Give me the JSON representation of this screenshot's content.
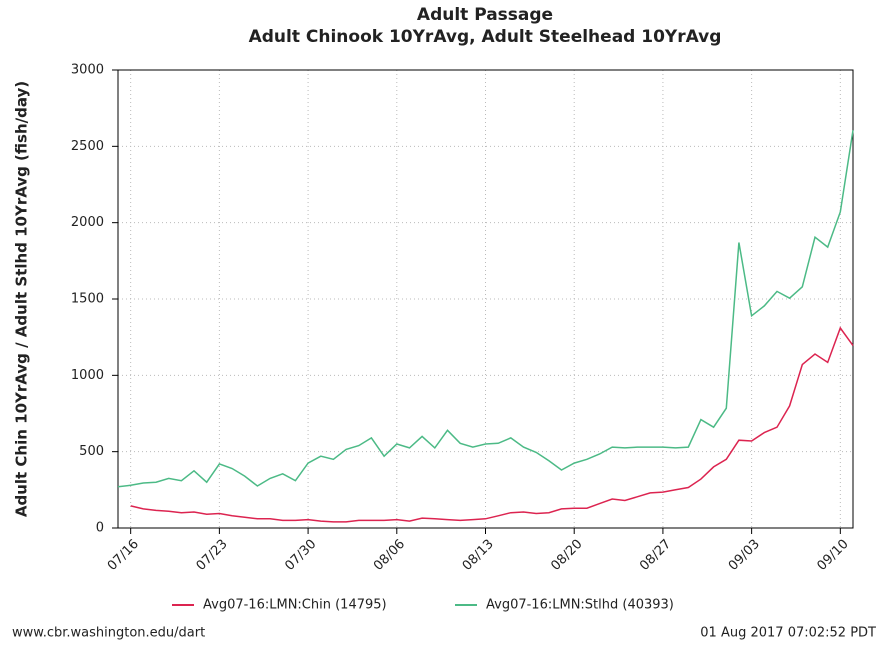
{
  "chart_data": {
    "type": "line",
    "title": "Adult Passage",
    "subtitle": "Adult Chinook 10YrAvg, Adult Steelhead 10YrAvg",
    "y_label": "Adult Chin 10YrAvg / Adult Stlhd 10YrAvg (fish/day)",
    "categories": [
      null,
      "07/16",
      null,
      null,
      null,
      null,
      null,
      null,
      "07/23",
      null,
      null,
      null,
      null,
      null,
      null,
      "07/30",
      null,
      null,
      null,
      null,
      null,
      null,
      "08/06",
      null,
      null,
      null,
      null,
      null,
      null,
      "08/13",
      null,
      null,
      null,
      null,
      null,
      null,
      "08/20",
      null,
      null,
      null,
      null,
      null,
      null,
      "08/27",
      null,
      null,
      null,
      null,
      null,
      null,
      "09/03",
      null,
      null,
      null,
      null,
      null,
      null,
      "09/10",
      null
    ],
    "series": [
      {
        "name": "Avg07-16:LMN:Chin (14795)",
        "color": "#dc2450",
        "values": [
          null,
          145,
          125,
          115,
          110,
          100,
          105,
          90,
          95,
          80,
          70,
          60,
          60,
          50,
          50,
          55,
          45,
          40,
          40,
          50,
          50,
          50,
          55,
          45,
          65,
          60,
          55,
          50,
          55,
          60,
          80,
          100,
          105,
          95,
          100,
          125,
          130,
          130,
          160,
          190,
          180,
          205,
          230,
          235,
          250,
          265,
          320,
          400,
          450,
          575,
          570,
          625,
          660,
          800,
          1070,
          1140,
          1085,
          1310,
          1195
        ]
      },
      {
        "name": "Avg07-16:LMN:Stlhd (40393)",
        "color": "#4cba86",
        "values": [
          270,
          280,
          295,
          300,
          325,
          310,
          375,
          300,
          420,
          390,
          340,
          275,
          325,
          355,
          310,
          425,
          470,
          450,
          515,
          540,
          590,
          470,
          550,
          525,
          600,
          525,
          640,
          555,
          530,
          550,
          555,
          590,
          530,
          495,
          440,
          380,
          425,
          450,
          485,
          530,
          525,
          530,
          530,
          530,
          525,
          530,
          710,
          660,
          785,
          1870,
          1390,
          1455,
          1550,
          1505,
          1580,
          1905,
          1840,
          2070,
          2605
        ]
      }
    ],
    "ylim": [
      0,
      3000
    ],
    "yticks": [
      0,
      500,
      1000,
      1500,
      2000,
      2500,
      3000
    ],
    "grid": true,
    "footer_left": "www.cbr.washington.edu/dart",
    "footer_right": "01 Aug 2017 07:02:52 PDT"
  }
}
